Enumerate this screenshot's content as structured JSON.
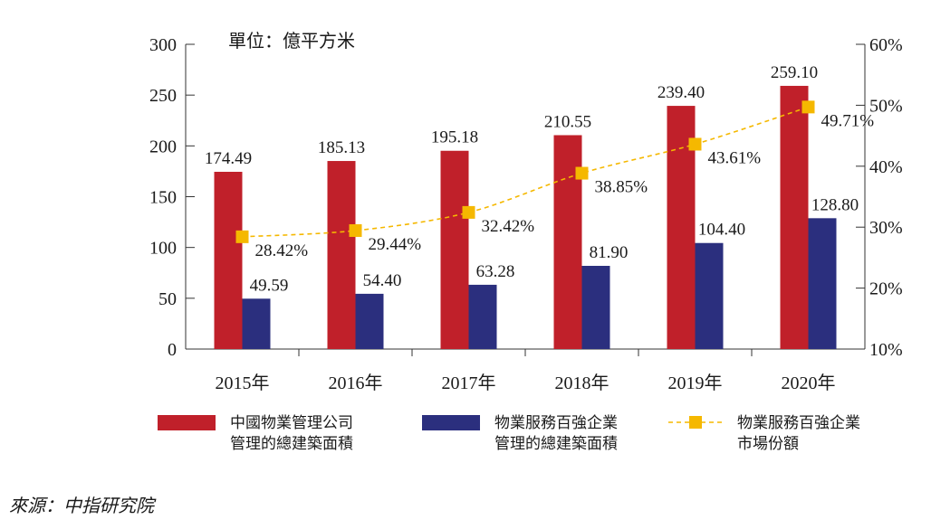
{
  "chart_data": {
    "type": "bar",
    "unit_label": "單位：億平方米",
    "categories": [
      "2015年",
      "2016年",
      "2017年",
      "2018年",
      "2019年",
      "2020年"
    ],
    "series": [
      {
        "name_lines": [
          "中國物業管理公司",
          "管理的總建築面積"
        ],
        "type": "bar",
        "axis": "left",
        "color": "#c0202a",
        "values": [
          174.49,
          185.13,
          195.18,
          210.55,
          239.4,
          259.1
        ],
        "labels": [
          "174.49",
          "185.13",
          "195.18",
          "210.55",
          "239.40",
          "259.10"
        ]
      },
      {
        "name_lines": [
          "物業服務百強企業",
          "管理的總建築面積"
        ],
        "type": "bar",
        "axis": "left",
        "color": "#2b2f7e",
        "values": [
          49.59,
          54.4,
          63.28,
          81.9,
          104.4,
          128.8
        ],
        "labels": [
          "49.59",
          "54.40",
          "63.28",
          "81.90",
          "104.40",
          "128.80"
        ]
      },
      {
        "name_lines": [
          "物業服務百強企業",
          "市場份額"
        ],
        "type": "line",
        "axis": "right",
        "color": "#f5b800",
        "values": [
          28.42,
          29.44,
          32.42,
          38.85,
          43.61,
          49.71
        ],
        "labels": [
          "28.42%",
          "29.44%",
          "32.42%",
          "38.85%",
          "43.61%",
          "49.71%"
        ]
      }
    ],
    "y_left": {
      "min": 0,
      "max": 300,
      "ticks": [
        0,
        50,
        100,
        150,
        200,
        250,
        300
      ],
      "tick_labels": [
        "0",
        "50",
        "100",
        "150",
        "200",
        "250",
        "300"
      ]
    },
    "y_right": {
      "min": 10,
      "max": 60,
      "ticks": [
        10,
        20,
        30,
        40,
        50,
        60
      ],
      "tick_labels": [
        "10%",
        "20%",
        "30%",
        "40%",
        "50%",
        "60%"
      ]
    },
    "grid": false,
    "legend_position": "bottom"
  },
  "source": "來源：中指研究院"
}
